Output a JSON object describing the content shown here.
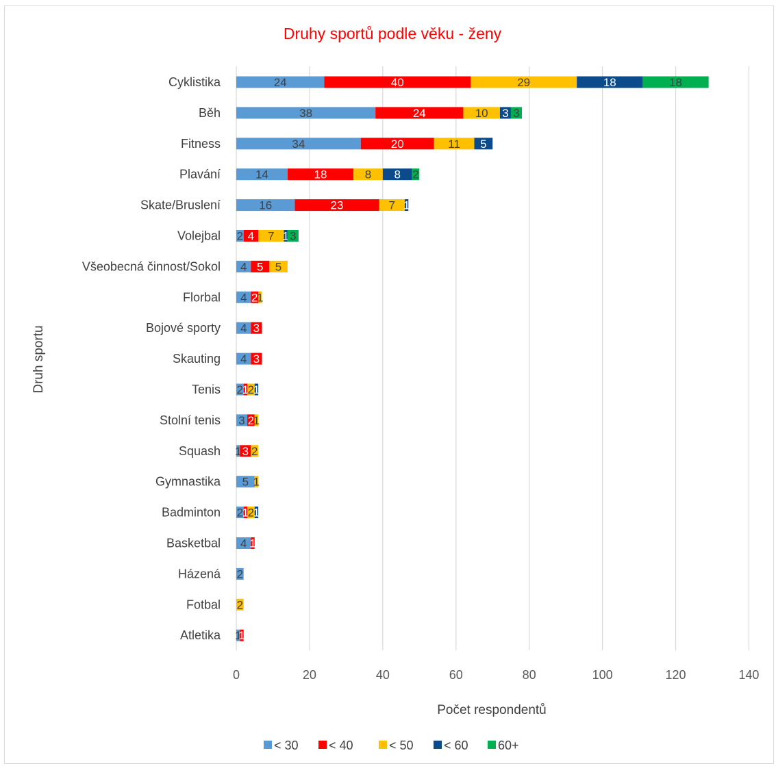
{
  "chart_data": {
    "type": "bar",
    "orientation": "horizontal",
    "stacked": true,
    "title": "Druhy sportů podle věku - ženy",
    "xlabel": "Počet respondentů",
    "ylabel": "Druh sportu",
    "xlim": [
      0,
      140
    ],
    "x_ticks": [
      0,
      20,
      40,
      60,
      80,
      100,
      120,
      140
    ],
    "grid": "vertical",
    "legend_position": "bottom",
    "categories": [
      "Cyklistika",
      "Běh",
      "Fitness",
      "Plavání",
      "Skate/Bruslení",
      "Volejbal",
      "Všeobecná činnost/Sokol",
      "Florbal",
      "Bojové sporty",
      "Skauting",
      "Tenis",
      "Stolní tenis",
      "Squash",
      "Gymnastika",
      "Badminton",
      "Basketbal",
      "Házená",
      "Fotbal",
      "Atletika"
    ],
    "series": [
      {
        "name": "< 30",
        "color": "#5b9bd5",
        "label_color": "#404040",
        "values": [
          24,
          38,
          34,
          14,
          16,
          2,
          4,
          4,
          4,
          4,
          2,
          3,
          1,
          5,
          2,
          4,
          2,
          null,
          1
        ]
      },
      {
        "name": "< 40",
        "color": "#ff0000",
        "label_color": "#ffffff",
        "values": [
          40,
          24,
          20,
          18,
          23,
          4,
          5,
          2,
          3,
          3,
          1,
          2,
          3,
          null,
          1,
          1,
          null,
          null,
          1
        ]
      },
      {
        "name": "< 50",
        "color": "#ffc000",
        "label_color": "#404040",
        "values": [
          29,
          10,
          11,
          8,
          7,
          7,
          5,
          1,
          null,
          null,
          2,
          1,
          2,
          1,
          2,
          null,
          null,
          2,
          null
        ]
      },
      {
        "name": "< 60",
        "color": "#0b4b8c",
        "label_color": "#ffffff",
        "values": [
          18,
          3,
          5,
          8,
          1,
          1,
          null,
          null,
          null,
          null,
          1,
          null,
          null,
          null,
          1,
          null,
          null,
          null,
          null
        ]
      },
      {
        "name": "60+",
        "color": "#00b050",
        "label_color": "#404040",
        "values": [
          18,
          3,
          null,
          2,
          null,
          3,
          null,
          null,
          null,
          null,
          null,
          null,
          null,
          null,
          null,
          null,
          null,
          null,
          null
        ]
      }
    ]
  }
}
